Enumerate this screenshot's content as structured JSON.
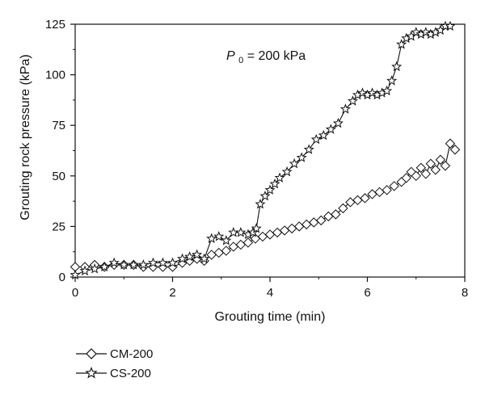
{
  "chart_data": {
    "type": "line",
    "title": "",
    "xlabel": "Grouting time (min)",
    "ylabel": "Grouting rock pressure (kPa)",
    "xlim": [
      0,
      8
    ],
    "ylim": [
      0,
      125
    ],
    "xticks": [
      0,
      2,
      4,
      6,
      8
    ],
    "yticks": [
      0,
      25,
      50,
      75,
      100,
      125
    ],
    "grid": false,
    "legend_position": "bottom-left",
    "annotation": {
      "symbol": "P",
      "subscript": "0",
      "text": " = 200 kPa"
    },
    "series": [
      {
        "name": "CM-200",
        "marker": "diamond",
        "x": [
          0.0,
          0.2,
          0.4,
          0.6,
          0.8,
          1.0,
          1.2,
          1.4,
          1.6,
          1.8,
          2.0,
          2.2,
          2.35,
          2.5,
          2.65,
          2.8,
          2.95,
          3.1,
          3.25,
          3.4,
          3.55,
          3.7,
          3.85,
          4.0,
          4.15,
          4.3,
          4.45,
          4.6,
          4.75,
          4.9,
          5.05,
          5.2,
          5.35,
          5.5,
          5.65,
          5.8,
          5.95,
          6.1,
          6.25,
          6.4,
          6.55,
          6.7,
          6.8,
          6.9,
          7.0,
          7.1,
          7.2,
          7.3,
          7.4,
          7.5,
          7.6,
          7.7,
          7.8
        ],
        "y": [
          5,
          5,
          6,
          5,
          6,
          6,
          6,
          5,
          5,
          5,
          5,
          7,
          8,
          9,
          8,
          11,
          12,
          13,
          15,
          16,
          17,
          19,
          20,
          21,
          22,
          23,
          24,
          25,
          26,
          27,
          28,
          30,
          31,
          34,
          37,
          38,
          39,
          41,
          42,
          43,
          45,
          47,
          49,
          52,
          50,
          54,
          51,
          56,
          53,
          58,
          55,
          66,
          63
        ]
      },
      {
        "name": "CS-200",
        "marker": "star",
        "x": [
          0.0,
          0.2,
          0.4,
          0.6,
          0.8,
          1.0,
          1.2,
          1.4,
          1.6,
          1.8,
          2.0,
          2.2,
          2.35,
          2.5,
          2.65,
          2.8,
          2.95,
          3.1,
          3.25,
          3.4,
          3.55,
          3.65,
          3.72,
          3.8,
          3.9,
          4.0,
          4.1,
          4.2,
          4.35,
          4.5,
          4.65,
          4.8,
          4.95,
          5.1,
          5.25,
          5.4,
          5.55,
          5.7,
          5.8,
          5.9,
          6.0,
          6.1,
          6.2,
          6.3,
          6.4,
          6.5,
          6.6,
          6.7,
          6.8,
          6.9,
          7.0,
          7.1,
          7.2,
          7.3,
          7.4,
          7.5,
          7.6,
          7.7
        ],
        "y": [
          1,
          3,
          4,
          5,
          7,
          6,
          6,
          6,
          7,
          7,
          7,
          9,
          10,
          11,
          9,
          19,
          20,
          18,
          22,
          22,
          21,
          22,
          24,
          36,
          40,
          43,
          46,
          49,
          52,
          56,
          59,
          63,
          68,
          70,
          73,
          76,
          83,
          87,
          90,
          91,
          90,
          91,
          90,
          91,
          92,
          97,
          104,
          115,
          118,
          119,
          121,
          120,
          121,
          120,
          121,
          122,
          124,
          124
        ]
      }
    ]
  }
}
